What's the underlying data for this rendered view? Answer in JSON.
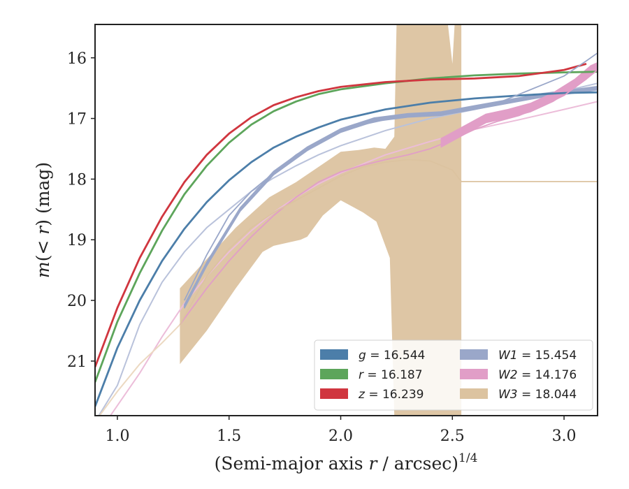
{
  "chart_data": {
    "type": "line",
    "xlabel": "(Semi-major axis r / arcsec)",
    "xlabel_parts": {
      "pre": "(Semi-major axis ",
      "var": "r",
      "post": " / arcsec)",
      "exp": "1/4"
    },
    "ylabel_parts": {
      "var": "m",
      "open": "(",
      "lt": "< ",
      "r": "r",
      "close": ")",
      "unit": " (mag)"
    },
    "xlim": [
      0.9,
      3.15
    ],
    "ylim": [
      21.9,
      15.45
    ],
    "y_inverted": true,
    "x_ticks": [
      1.0,
      1.5,
      2.0,
      2.5,
      3.0
    ],
    "x_tick_labels": [
      "1.0",
      "1.5",
      "2.0",
      "2.5",
      "3.0"
    ],
    "y_ticks": [
      16,
      17,
      18,
      19,
      20,
      21
    ],
    "y_tick_labels": [
      "16",
      "17",
      "18",
      "19",
      "20",
      "21"
    ],
    "grid": false,
    "legend_position": "lower-right",
    "legend": [
      {
        "band": "g",
        "text": " = 16.544",
        "color": "#4c7ea9"
      },
      {
        "band": "r",
        "text": " = 16.187",
        "color": "#5da55b"
      },
      {
        "band": "z",
        "text": " = 16.239",
        "color": "#d0363f"
      },
      {
        "band": "W1",
        "text": " = 15.454",
        "color": "#9aa7c9"
      },
      {
        "band": "W2",
        "text": " = 14.176",
        "color": "#e19ec7"
      },
      {
        "band": "W3",
        "text": " = 18.044",
        "color": "#dcc3a0"
      }
    ],
    "models": [
      {
        "band": "g",
        "color": "#4c7ea9",
        "x": [
          0.9,
          1.0,
          1.1,
          1.2,
          1.3,
          1.4,
          1.5,
          1.6,
          1.7,
          1.8,
          1.9,
          2.0,
          2.2,
          2.4,
          2.6,
          2.8,
          3.0,
          3.15
        ],
        "y": [
          21.75,
          20.78,
          20.0,
          19.35,
          18.82,
          18.38,
          18.02,
          17.72,
          17.48,
          17.3,
          17.15,
          17.02,
          16.85,
          16.74,
          16.67,
          16.62,
          16.58,
          16.57
        ]
      },
      {
        "band": "r",
        "color": "#5da55b",
        "x": [
          0.9,
          1.0,
          1.1,
          1.2,
          1.3,
          1.4,
          1.5,
          1.6,
          1.7,
          1.8,
          1.9,
          2.0,
          2.2,
          2.4,
          2.6,
          2.8,
          3.0,
          3.15
        ],
        "y": [
          21.35,
          20.35,
          19.55,
          18.85,
          18.25,
          17.78,
          17.4,
          17.1,
          16.88,
          16.72,
          16.6,
          16.52,
          16.42,
          16.34,
          16.29,
          16.26,
          16.24,
          16.23
        ]
      },
      {
        "band": "z",
        "color": "#d0363f",
        "x": [
          0.9,
          1.0,
          1.1,
          1.2,
          1.3,
          1.4,
          1.5,
          1.6,
          1.7,
          1.8,
          1.9,
          2.0,
          2.2,
          2.4,
          2.6,
          2.8,
          3.0,
          3.1
        ],
        "y": [
          21.1,
          20.12,
          19.3,
          18.62,
          18.05,
          17.6,
          17.25,
          16.98,
          16.78,
          16.65,
          16.55,
          16.48,
          16.4,
          16.36,
          16.34,
          16.3,
          16.2,
          16.1
        ]
      },
      {
        "band": "W1",
        "color": "#9aa7c9",
        "x": [
          1.3,
          1.4,
          1.5,
          1.6,
          1.7,
          1.8,
          1.9,
          2.0,
          2.1,
          2.2,
          2.3,
          2.4,
          2.5,
          2.6,
          2.7,
          2.8,
          2.9,
          3.0,
          3.1,
          3.15
        ],
        "y": [
          20.0,
          19.25,
          18.6,
          18.2,
          17.9,
          17.6,
          17.38,
          17.2,
          17.1,
          17.02,
          16.96,
          16.92,
          16.9,
          16.85,
          16.75,
          16.6,
          16.45,
          16.3,
          16.05,
          15.92
        ]
      },
      {
        "band": "W2",
        "color": "#e19ec7",
        "x": [
          1.28,
          1.4,
          1.5,
          1.6,
          1.7,
          1.8,
          1.9,
          2.0,
          2.1,
          2.2,
          2.3,
          2.4,
          2.5,
          2.6,
          2.7,
          2.8,
          2.9,
          3.0,
          3.1,
          3.15
        ],
        "y": [
          20.4,
          19.8,
          19.35,
          18.95,
          18.6,
          18.3,
          18.05,
          17.88,
          17.77,
          17.68,
          17.6,
          17.5,
          17.35,
          17.18,
          17.05,
          16.95,
          16.8,
          16.62,
          16.35,
          16.2
        ]
      },
      {
        "band": "W3",
        "color": "#dcc3a0",
        "x": [
          1.28,
          1.4,
          1.5,
          1.6,
          1.7,
          1.8,
          1.9,
          2.0,
          2.1,
          2.2,
          2.3,
          2.4,
          2.5,
          2.54,
          3.15
        ],
        "y": [
          20.4,
          19.6,
          19.15,
          18.8,
          18.55,
          18.35,
          18.15,
          17.95,
          17.8,
          17.72,
          17.68,
          17.7,
          17.85,
          18.04,
          18.04
        ]
      }
    ],
    "models_faint": [
      {
        "band": "g",
        "color": "#b9c2db",
        "x": [
          0.9,
          1.0,
          1.1,
          1.2,
          1.3,
          1.4,
          1.5,
          1.6,
          1.7,
          1.8,
          1.9,
          2.0,
          2.2,
          2.4,
          2.6,
          2.8,
          3.0,
          3.15
        ],
        "y": [
          22.0,
          21.4,
          20.4,
          19.7,
          19.2,
          18.8,
          18.5,
          18.2,
          17.98,
          17.78,
          17.6,
          17.45,
          17.2,
          17.0,
          16.85,
          16.7,
          16.55,
          16.42
        ]
      },
      {
        "band": "W2",
        "color": "#ecbdd9",
        "x": [
          0.95,
          1.1,
          1.2,
          1.3,
          1.4,
          1.5,
          1.6,
          1.7,
          1.8,
          1.9,
          2.0,
          2.2,
          2.4,
          2.6,
          2.8,
          3.0,
          3.15
        ],
        "y": [
          22.0,
          21.2,
          20.6,
          20.05,
          19.6,
          19.2,
          18.85,
          18.55,
          18.3,
          18.08,
          17.9,
          17.6,
          17.38,
          17.18,
          17.02,
          16.85,
          16.72
        ]
      },
      {
        "band": "W3",
        "color": "#ecd9c1",
        "x": [
          0.9,
          1.0,
          1.1,
          1.2,
          1.28
        ],
        "y": [
          22.0,
          21.5,
          21.05,
          20.7,
          20.4
        ]
      }
    ],
    "data_bands": [
      {
        "band": "W1",
        "color": "#9aa7c9",
        "x": [
          1.3,
          1.4,
          1.55,
          1.7,
          1.85,
          2.0,
          2.15,
          2.3,
          2.45,
          2.6,
          2.75,
          2.9,
          3.05,
          3.15
        ],
        "y": [
          20.1,
          19.4,
          18.5,
          17.9,
          17.5,
          17.2,
          17.02,
          16.95,
          16.92,
          16.82,
          16.72,
          16.62,
          16.55,
          16.5
        ],
        "width": 0.06
      },
      {
        "band": "W2",
        "color": "#e19ec7",
        "x": [
          2.45,
          2.55,
          2.65,
          2.75,
          2.85,
          2.95,
          3.05,
          3.12,
          3.15
        ],
        "y": [
          17.4,
          17.2,
          17.0,
          16.92,
          16.82,
          16.65,
          16.42,
          16.2,
          16.15
        ],
        "width": 0.14
      }
    ],
    "w3_band": {
      "color": "#dcc3a0",
      "upper_x": [
        1.28,
        1.38,
        1.53,
        1.68,
        1.8,
        1.92,
        2.0,
        2.08,
        2.15,
        2.2,
        2.24,
        2.25,
        2.3,
        2.35,
        2.4,
        2.45,
        2.48,
        2.5,
        2.51,
        2.53,
        2.54
      ],
      "upper_y": [
        19.8,
        19.4,
        18.8,
        18.3,
        18.05,
        17.75,
        17.55,
        17.52,
        17.48,
        17.5,
        17.3,
        15.45,
        15.45,
        15.45,
        15.45,
        15.45,
        15.45,
        16.1,
        15.45,
        15.45,
        15.45
      ],
      "lower_x": [
        2.54,
        2.53,
        2.5,
        2.45,
        2.3,
        2.25,
        2.24,
        2.22,
        2.16,
        2.1,
        2.0,
        1.92,
        1.85,
        1.82,
        1.7,
        1.65,
        1.53,
        1.4,
        1.28
      ],
      "lower_y": [
        21.9,
        21.9,
        21.9,
        21.9,
        21.9,
        21.9,
        21.9,
        19.3,
        18.7,
        18.55,
        18.35,
        18.6,
        18.95,
        19.0,
        19.1,
        19.2,
        19.8,
        20.5,
        21.05
      ]
    }
  }
}
